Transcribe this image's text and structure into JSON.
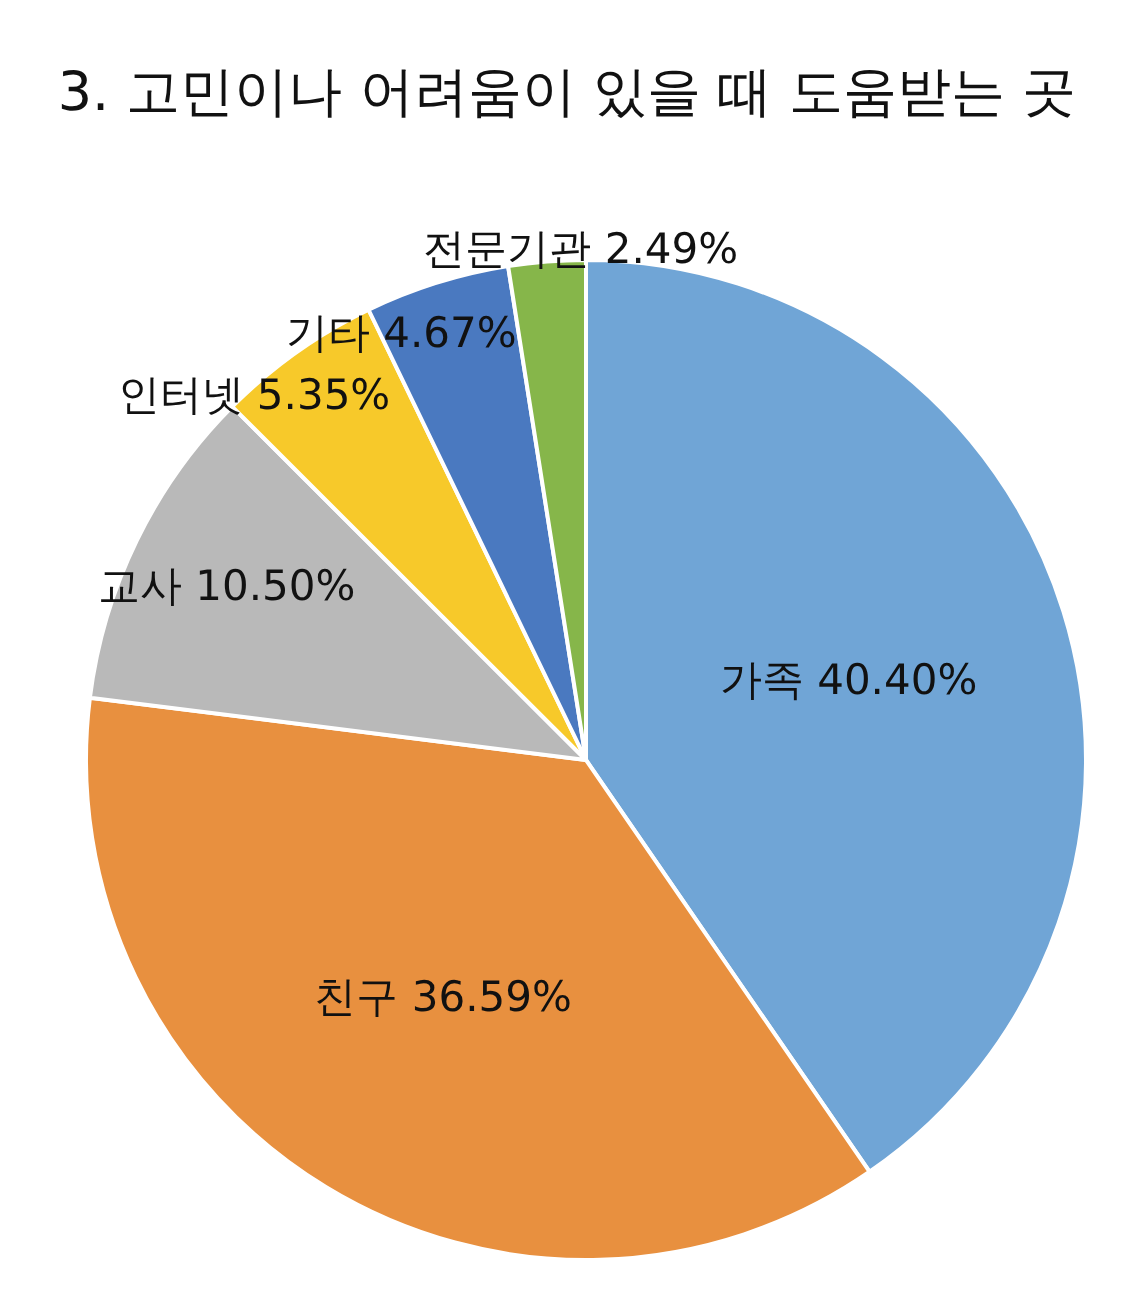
{
  "chart_data": {
    "type": "pie",
    "title": "3. 고민이나 어려움이 있을 때 도움받는 곳",
    "categories": [
      "가족",
      "친구",
      "교사",
      "인터넷",
      "기타",
      "전문기관"
    ],
    "values": [
      40.4,
      36.59,
      10.5,
      5.35,
      4.67,
      2.49
    ],
    "value_labels": [
      "40.40%",
      "36.59%",
      "10.50%",
      "5.35%",
      "4.67%",
      "2.49%"
    ],
    "colors": [
      "#70a5d6",
      "#e8903f",
      "#b9b9b9",
      "#f7c92a",
      "#4a79c0",
      "#86b64a"
    ],
    "legend": false
  }
}
